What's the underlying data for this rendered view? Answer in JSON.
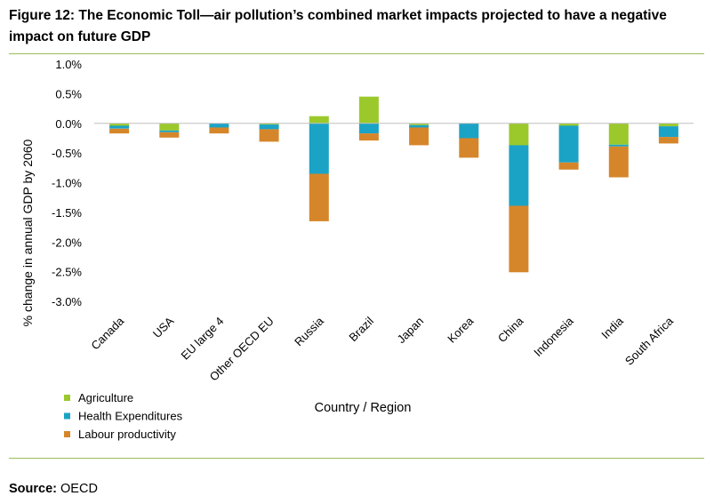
{
  "title": "Figure 12: The Economic Toll—air pollution’s combined market impacts projected to have a negative impact on future GDP",
  "source": {
    "label": "Source:",
    "value": "OECD"
  },
  "chart_data": {
    "type": "bar",
    "stacked": true,
    "categories": [
      "Canada",
      "USA",
      "EU large 4",
      "Other OECD EU",
      "Russia",
      "Brazil",
      "Japan",
      "Korea",
      "China",
      "Indonesia",
      "India",
      "South Africa"
    ],
    "series": [
      {
        "name": "Agriculture",
        "color": "#9bc92b",
        "values": [
          -0.04,
          -0.12,
          0.0,
          -0.02,
          0.12,
          0.45,
          -0.03,
          0.0,
          -0.37,
          -0.04,
          -0.36,
          -0.05
        ]
      },
      {
        "name": "Health Expenditures",
        "color": "#1ba3c6",
        "values": [
          -0.05,
          -0.03,
          -0.07,
          -0.08,
          -0.85,
          -0.17,
          -0.04,
          -0.25,
          -1.02,
          -0.62,
          -0.03,
          -0.18
        ]
      },
      {
        "name": "Labour productivity",
        "color": "#d6862a",
        "values": [
          -0.08,
          -0.09,
          -0.1,
          -0.21,
          -0.8,
          -0.12,
          -0.3,
          -0.33,
          -1.12,
          -0.12,
          -0.52,
          -0.11
        ]
      }
    ],
    "xlabel": "Country / Region",
    "ylabel": "% change in annual GDP by 2060",
    "ylim": [
      -3.0,
      1.0
    ],
    "yticks": [
      1.0,
      0.5,
      0.0,
      -0.5,
      -1.0,
      -1.5,
      -2.0,
      -2.5,
      -3.0
    ],
    "ytick_labels": [
      "1.0%",
      "0.5%",
      "0.0%",
      "-0.5%",
      "-1.0%",
      "-1.5%",
      "-2.0%",
      "-2.5%",
      "-3.0%"
    ],
    "grid": false,
    "legend": "bottom-left"
  }
}
